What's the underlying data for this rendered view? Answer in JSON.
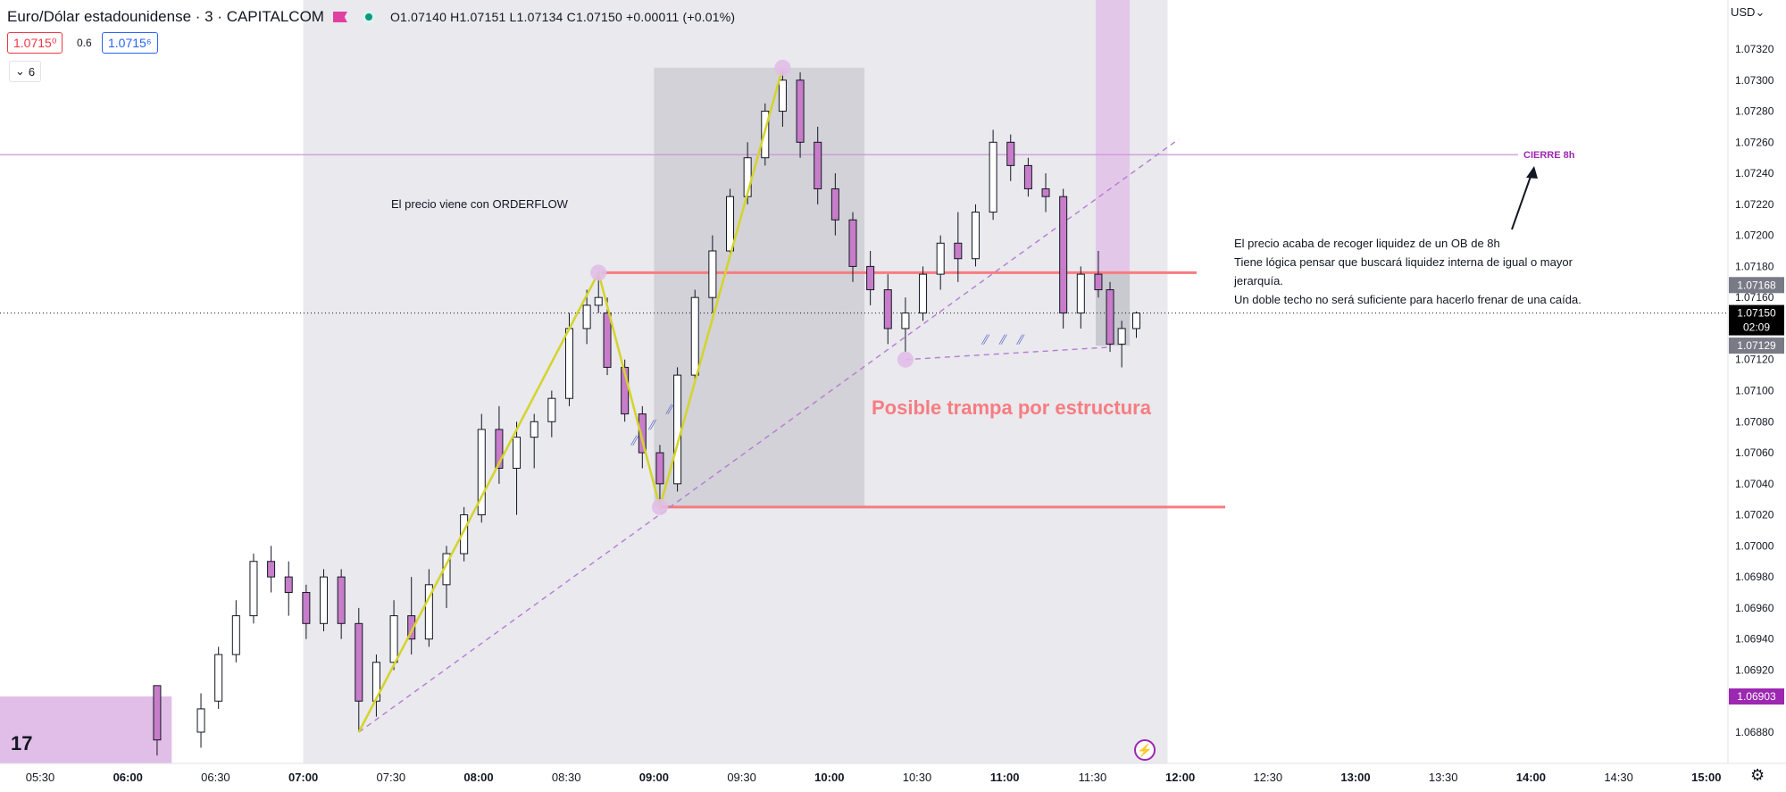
{
  "header": {
    "symbol": "Euro/Dólar estadounidense · 3 · CAPITALCOM",
    "ohlc": "O1.07140 H1.07151 L1.07134 C1.07150 +0.00011 (+0.01%)",
    "sell_price": "1.0715⁰",
    "spread": "0.6",
    "buy_price": "1.0715⁶",
    "indicators_count": "6",
    "currency": "USD"
  },
  "chart_data": {
    "type": "candlestick",
    "timeframe": "3",
    "ylim": [
      1.06862,
      1.07344
    ],
    "x_ticks": [
      "05:30",
      "06:00",
      "06:30",
      "07:00",
      "07:30",
      "08:00",
      "08:30",
      "09:00",
      "09:30",
      "10:00",
      "10:30",
      "11:00",
      "11:30",
      "12:00",
      "12:30",
      "13:00",
      "13:30",
      "14:00",
      "14:30",
      "15:00"
    ],
    "y_ticks": [
      "1.07320",
      "1.07300",
      "1.07280",
      "1.07260",
      "1.07240",
      "1.07220",
      "1.07200",
      "1.07180",
      "1.07160",
      "1.07140",
      "1.07120",
      "1.07100",
      "1.07080",
      "1.07060",
      "1.07040",
      "1.07020",
      "1.07000",
      "1.06980",
      "1.06960",
      "1.06940",
      "1.06920",
      "1.06880"
    ],
    "candles_summary": "3-minute candles from ~06:00 to ~11:45; low near 1.06880 at ~07:18, swing high 1.07176 at ~08:40, low 1.07025 at ~09:02, high 1.07308 at ~09:45, range 1.07120-1.07270 until ~11:45",
    "candles": [
      {
        "t": "06:10",
        "o": 1.0691,
        "h": 1.0691,
        "l": 1.06865,
        "c": 1.06875
      },
      {
        "t": "06:25",
        "o": 1.0688,
        "h": 1.06905,
        "l": 1.0687,
        "c": 1.06895
      },
      {
        "t": "06:31",
        "o": 1.069,
        "h": 1.06935,
        "l": 1.06895,
        "c": 1.0693
      },
      {
        "t": "06:37",
        "o": 1.0693,
        "h": 1.06965,
        "l": 1.06925,
        "c": 1.06955
      },
      {
        "t": "06:43",
        "o": 1.06955,
        "h": 1.06995,
        "l": 1.0695,
        "c": 1.0699
      },
      {
        "t": "06:49",
        "o": 1.0699,
        "h": 1.07,
        "l": 1.0697,
        "c": 1.0698
      },
      {
        "t": "06:55",
        "o": 1.0698,
        "h": 1.0699,
        "l": 1.06955,
        "c": 1.0697
      },
      {
        "t": "07:01",
        "o": 1.0697,
        "h": 1.06975,
        "l": 1.0694,
        "c": 1.0695
      },
      {
        "t": "07:07",
        "o": 1.0695,
        "h": 1.06985,
        "l": 1.06945,
        "c": 1.0698
      },
      {
        "t": "07:13",
        "o": 1.0698,
        "h": 1.06985,
        "l": 1.0694,
        "c": 1.0695
      },
      {
        "t": "07:19",
        "o": 1.0695,
        "h": 1.0696,
        "l": 1.0688,
        "c": 1.069
      },
      {
        "t": "07:25",
        "o": 1.069,
        "h": 1.0693,
        "l": 1.0689,
        "c": 1.06925
      },
      {
        "t": "07:31",
        "o": 1.06925,
        "h": 1.06965,
        "l": 1.0692,
        "c": 1.06955
      },
      {
        "t": "07:37",
        "o": 1.06955,
        "h": 1.0698,
        "l": 1.0693,
        "c": 1.0694
      },
      {
        "t": "07:43",
        "o": 1.0694,
        "h": 1.06985,
        "l": 1.06935,
        "c": 1.06975
      },
      {
        "t": "07:49",
        "o": 1.06975,
        "h": 1.07,
        "l": 1.0696,
        "c": 1.06995
      },
      {
        "t": "07:55",
        "o": 1.06995,
        "h": 1.07025,
        "l": 1.0699,
        "c": 1.0702
      },
      {
        "t": "08:01",
        "o": 1.0702,
        "h": 1.07085,
        "l": 1.07015,
        "c": 1.07075
      },
      {
        "t": "08:07",
        "o": 1.07075,
        "h": 1.0709,
        "l": 1.0704,
        "c": 1.0705
      },
      {
        "t": "08:13",
        "o": 1.0705,
        "h": 1.0708,
        "l": 1.0702,
        "c": 1.0707
      },
      {
        "t": "08:19",
        "o": 1.0707,
        "h": 1.07085,
        "l": 1.0705,
        "c": 1.0708
      },
      {
        "t": "08:25",
        "o": 1.0708,
        "h": 1.071,
        "l": 1.0707,
        "c": 1.07095
      },
      {
        "t": "08:31",
        "o": 1.07095,
        "h": 1.0715,
        "l": 1.0709,
        "c": 1.0714
      },
      {
        "t": "08:37",
        "o": 1.0714,
        "h": 1.07165,
        "l": 1.0713,
        "c": 1.07155
      },
      {
        "t": "08:41",
        "o": 1.07155,
        "h": 1.07176,
        "l": 1.0715,
        "c": 1.0716
      },
      {
        "t": "08:44",
        "o": 1.0715,
        "h": 1.0716,
        "l": 1.0711,
        "c": 1.07115
      },
      {
        "t": "08:50",
        "o": 1.07115,
        "h": 1.0712,
        "l": 1.0708,
        "c": 1.07085
      },
      {
        "t": "08:56",
        "o": 1.07085,
        "h": 1.0709,
        "l": 1.0705,
        "c": 1.0706
      },
      {
        "t": "09:02",
        "o": 1.0706,
        "h": 1.07065,
        "l": 1.07025,
        "c": 1.0704
      },
      {
        "t": "09:08",
        "o": 1.0704,
        "h": 1.07115,
        "l": 1.07035,
        "c": 1.0711
      },
      {
        "t": "09:14",
        "o": 1.0711,
        "h": 1.07165,
        "l": 1.07105,
        "c": 1.0716
      },
      {
        "t": "09:20",
        "o": 1.0716,
        "h": 1.072,
        "l": 1.0715,
        "c": 1.0719
      },
      {
        "t": "09:26",
        "o": 1.0719,
        "h": 1.0723,
        "l": 1.07185,
        "c": 1.07225
      },
      {
        "t": "09:32",
        "o": 1.07225,
        "h": 1.0726,
        "l": 1.0722,
        "c": 1.0725
      },
      {
        "t": "09:38",
        "o": 1.0725,
        "h": 1.07285,
        "l": 1.07245,
        "c": 1.0728
      },
      {
        "t": "09:44",
        "o": 1.0728,
        "h": 1.07308,
        "l": 1.0727,
        "c": 1.073
      },
      {
        "t": "09:50",
        "o": 1.073,
        "h": 1.07305,
        "l": 1.0725,
        "c": 1.0726
      },
      {
        "t": "09:56",
        "o": 1.0726,
        "h": 1.0727,
        "l": 1.0722,
        "c": 1.0723
      },
      {
        "t": "10:02",
        "o": 1.0723,
        "h": 1.0724,
        "l": 1.072,
        "c": 1.0721
      },
      {
        "t": "10:08",
        "o": 1.0721,
        "h": 1.07215,
        "l": 1.0717,
        "c": 1.0718
      },
      {
        "t": "10:14",
        "o": 1.0718,
        "h": 1.0719,
        "l": 1.07155,
        "c": 1.07165
      },
      {
        "t": "10:20",
        "o": 1.07165,
        "h": 1.07175,
        "l": 1.0713,
        "c": 1.0714
      },
      {
        "t": "10:26",
        "o": 1.0714,
        "h": 1.0716,
        "l": 1.07125,
        "c": 1.0715
      },
      {
        "t": "10:32",
        "o": 1.0715,
        "h": 1.0718,
        "l": 1.07145,
        "c": 1.07175
      },
      {
        "t": "10:38",
        "o": 1.07175,
        "h": 1.072,
        "l": 1.07165,
        "c": 1.07195
      },
      {
        "t": "10:44",
        "o": 1.07195,
        "h": 1.07215,
        "l": 1.0717,
        "c": 1.07185
      },
      {
        "t": "10:50",
        "o": 1.07185,
        "h": 1.0722,
        "l": 1.0718,
        "c": 1.07215
      },
      {
        "t": "10:56",
        "o": 1.07215,
        "h": 1.07268,
        "l": 1.0721,
        "c": 1.0726
      },
      {
        "t": "11:02",
        "o": 1.0726,
        "h": 1.07265,
        "l": 1.07235,
        "c": 1.07245
      },
      {
        "t": "11:08",
        "o": 1.07245,
        "h": 1.0725,
        "l": 1.07225,
        "c": 1.0723
      },
      {
        "t": "11:14",
        "o": 1.0723,
        "h": 1.0724,
        "l": 1.07215,
        "c": 1.07225
      },
      {
        "t": "11:20",
        "o": 1.07225,
        "h": 1.0723,
        "l": 1.0714,
        "c": 1.0715
      },
      {
        "t": "11:26",
        "o": 1.0715,
        "h": 1.0718,
        "l": 1.0714,
        "c": 1.07175
      },
      {
        "t": "11:32",
        "o": 1.07175,
        "h": 1.0719,
        "l": 1.0716,
        "c": 1.07165
      },
      {
        "t": "11:36",
        "o": 1.07165,
        "h": 1.0717,
        "l": 1.07125,
        "c": 1.0713
      },
      {
        "t": "11:40",
        "o": 1.0713,
        "h": 1.07145,
        "l": 1.07115,
        "c": 1.0714
      },
      {
        "t": "11:45",
        "o": 1.0714,
        "h": 1.07151,
        "l": 1.07134,
        "c": 1.0715
      }
    ],
    "price_labels": [
      {
        "label": "1.07168",
        "value": 1.07168,
        "color": "#787b86"
      },
      {
        "label": "1.07150",
        "value": 1.0715,
        "color": "#000000",
        "sub": "02:09"
      },
      {
        "label": "1.07129",
        "value": 1.07129,
        "color": "#787b86"
      },
      {
        "label": "1.06903",
        "value": 1.06903,
        "color": "#9c27b0"
      }
    ],
    "levels": [
      {
        "name": "cierre-8h",
        "value": 1.07252,
        "color": "#ce93d8",
        "label": "CIERRE 8h"
      },
      {
        "name": "resistance",
        "value": 1.07176,
        "color": "#f77c80"
      },
      {
        "name": "support",
        "value": 1.07025,
        "color": "#f77c80"
      }
    ],
    "annotations": {
      "orderflow": "El precio viene con ORDERFLOW",
      "trap": "Posible trampa por estructura",
      "note_lines": [
        "El precio acaba de recoger liquidez de un OB de 8h",
        "Tiene lógica pensar que buscará liquidez interna de igual o mayor",
        "jerarquía.",
        "Un doble techo no será suficiente para hacerlo frenar de una caída."
      ]
    },
    "colors": {
      "bull": "#ffffff",
      "bear": "#c77dc9",
      "wick": "#131722",
      "session": "#e9e9ee",
      "ob_zone": "#d2d2d8",
      "ob8h": "#e1bee7",
      "zigzag": "#d4d42a",
      "level": "#f77c80",
      "trend": "#b67bd0"
    }
  }
}
